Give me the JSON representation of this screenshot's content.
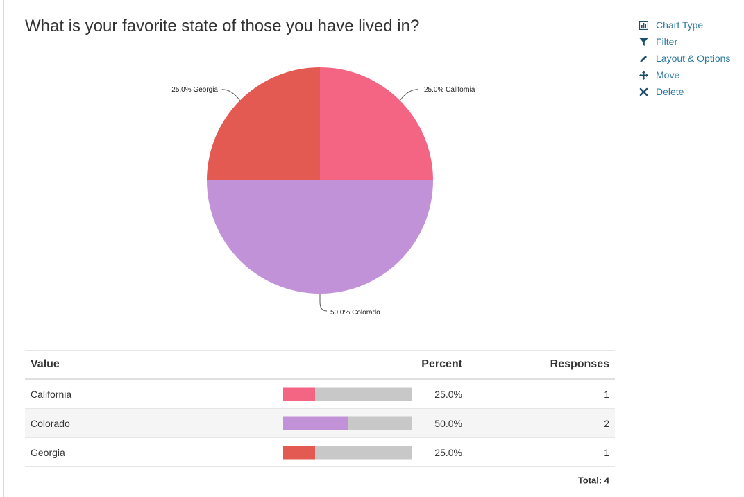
{
  "question": "What is your favorite state of those you have lived in?",
  "colors": {
    "California": "#f46584",
    "Colorado": "#c292d9",
    "Georgia": "#e35a52",
    "bar_track": "#c8c8c8",
    "link": "#2a7aa1"
  },
  "chart_data": {
    "type": "pie",
    "title": "What is your favorite state of those you have lived in?",
    "slices": [
      {
        "label": "California",
        "percent": 25.0,
        "display": "25.0% California",
        "color": "#f46584"
      },
      {
        "label": "Colorado",
        "percent": 50.0,
        "display": "50.0% Colorado",
        "color": "#c292d9"
      },
      {
        "label": "Georgia",
        "percent": 25.0,
        "display": "25.0% Georgia",
        "color": "#e35a52"
      }
    ]
  },
  "table": {
    "headers": {
      "value": "Value",
      "percent": "Percent",
      "responses": "Responses"
    },
    "rows": [
      {
        "value": "California",
        "percent": "25.0%",
        "fraction": 0.25,
        "responses": "1",
        "color": "#f46584"
      },
      {
        "value": "Colorado",
        "percent": "50.0%",
        "fraction": 0.5,
        "responses": "2",
        "color": "#c292d9"
      },
      {
        "value": "Georgia",
        "percent": "25.0%",
        "fraction": 0.25,
        "responses": "1",
        "color": "#e35a52"
      }
    ],
    "total": "Total: 4"
  },
  "sidebar": {
    "items": [
      {
        "label": "Chart Type",
        "icon": "bar-chart-icon"
      },
      {
        "label": "Filter",
        "icon": "filter-icon"
      },
      {
        "label": "Layout & Options",
        "icon": "pencil-icon"
      },
      {
        "label": "Move",
        "icon": "move-icon"
      },
      {
        "label": "Delete",
        "icon": "close-icon"
      }
    ]
  }
}
